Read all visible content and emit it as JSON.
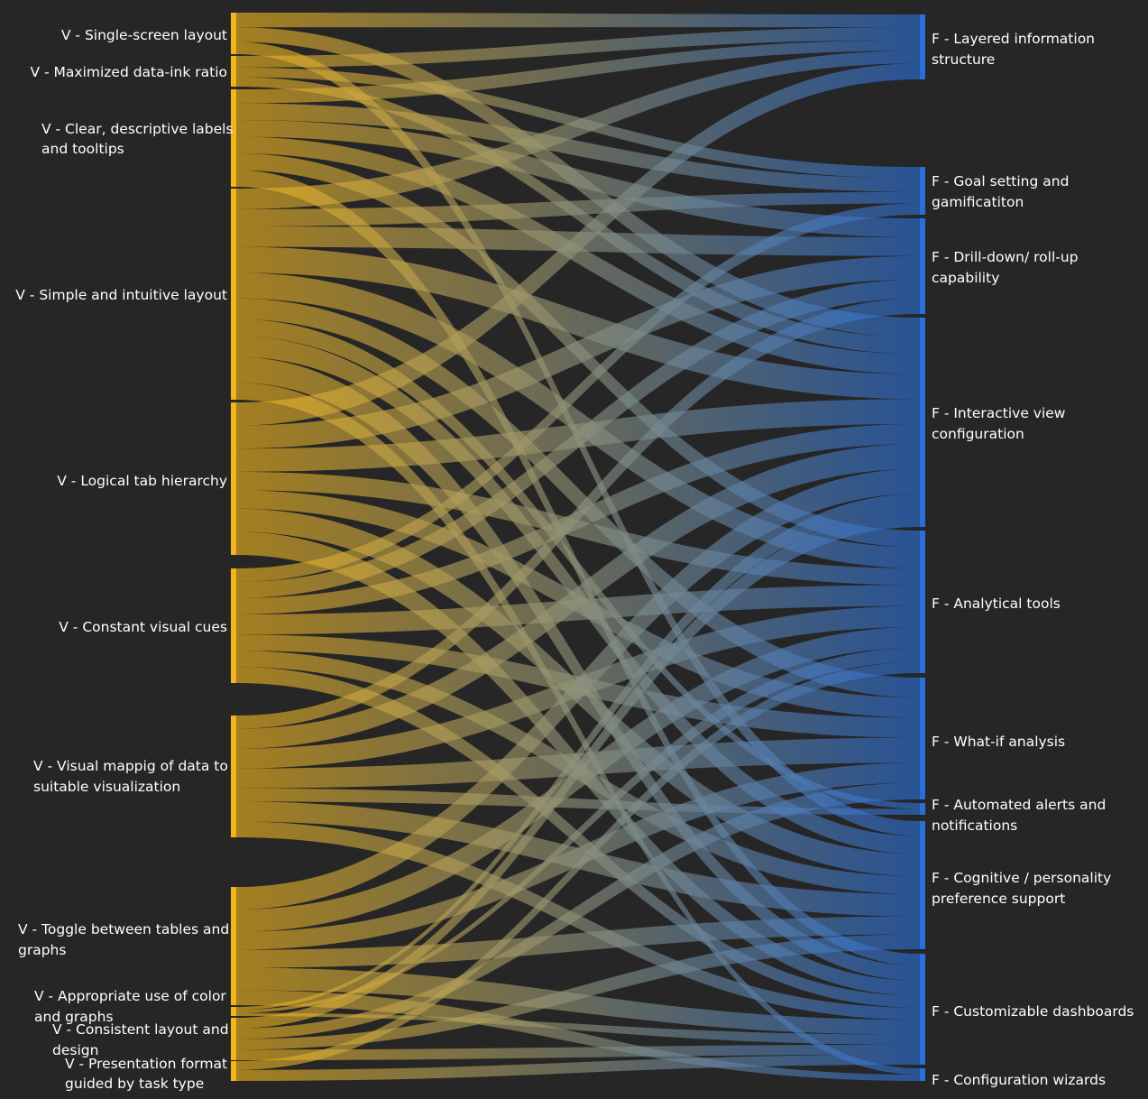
{
  "diagram": {
    "type": "sankey",
    "background_color": "#262626",
    "left_color": "#f2b51c",
    "right_color": "#2a6fd9",
    "sources": [
      {
        "id": "s1",
        "label_lines": [
          "V - Single-screen layout"
        ]
      },
      {
        "id": "s2",
        "label_lines": [
          "V - Maximized data-ink ratio"
        ]
      },
      {
        "id": "s3",
        "label_lines": [
          "V - Clear, descriptive labels",
          "and tooltips"
        ]
      },
      {
        "id": "s4",
        "label_lines": [
          "V - Simple and intuitive layout"
        ]
      },
      {
        "id": "s5",
        "label_lines": [
          "V - Logical tab hierarchy"
        ]
      },
      {
        "id": "s6",
        "label_lines": [
          "V - Constant visual cues"
        ]
      },
      {
        "id": "s7",
        "label_lines": [
          "V - Visual mappig of data to",
          "suitable visualization"
        ]
      },
      {
        "id": "s8",
        "label_lines": [
          "V - Toggle between tables and",
          "graphs"
        ]
      },
      {
        "id": "s9",
        "label_lines": [
          "V - Appropriate use of color",
          "and graphs"
        ]
      },
      {
        "id": "s10",
        "label_lines": [
          "V - Consistent layout and",
          "design"
        ]
      },
      {
        "id": "s11",
        "label_lines": [
          "V - Presentation format",
          "guided by task type"
        ]
      }
    ],
    "targets": [
      {
        "id": "t1",
        "label_lines": [
          "F - Layered information",
          "structure"
        ]
      },
      {
        "id": "t2",
        "label_lines": [
          "F - Goal setting and",
          "gamificatiton"
        ]
      },
      {
        "id": "t3",
        "label_lines": [
          "F - Drill-down/ roll-up",
          "capability"
        ]
      },
      {
        "id": "t4",
        "label_lines": [
          "F - Interactive view",
          "configuration"
        ]
      },
      {
        "id": "t5",
        "label_lines": [
          "F - Analytical tools"
        ]
      },
      {
        "id": "t6",
        "label_lines": [
          "F - What-if analysis"
        ]
      },
      {
        "id": "t7",
        "label_lines": [
          "F - Automated alerts and",
          "notifications"
        ]
      },
      {
        "id": "t8",
        "label_lines": [
          "F - Cognitive / personality",
          "preference support"
        ]
      },
      {
        "id": "t9",
        "label_lines": [
          "F - Customizable dashboards"
        ]
      },
      {
        "id": "t10",
        "label_lines": [
          "F - Configuration wizards"
        ]
      }
    ],
    "links": [
      {
        "from": "s1",
        "to": "t1",
        "value": 1.2
      },
      {
        "from": "s1",
        "to": "t4",
        "value": 1.2
      },
      {
        "from": "s1",
        "to": "t8",
        "value": 1
      },
      {
        "from": "s2",
        "to": "t1",
        "value": 1.2
      },
      {
        "from": "s2",
        "to": "t2",
        "value": 1
      },
      {
        "from": "s2",
        "to": "t4",
        "value": 1
      },
      {
        "from": "s3",
        "to": "t1",
        "value": 1
      },
      {
        "from": "s3",
        "to": "t2",
        "value": 1.2
      },
      {
        "from": "s3",
        "to": "t3",
        "value": 1.2
      },
      {
        "from": "s3",
        "to": "t4",
        "value": 1.2
      },
      {
        "from": "s3",
        "to": "t5",
        "value": 1.2
      },
      {
        "from": "s3",
        "to": "t9",
        "value": 1.2
      },
      {
        "from": "s4",
        "to": "t1",
        "value": 1.2
      },
      {
        "from": "s4",
        "to": "t2",
        "value": 1
      },
      {
        "from": "s4",
        "to": "t3",
        "value": 1.2
      },
      {
        "from": "s4",
        "to": "t4",
        "value": 1.5
      },
      {
        "from": "s4",
        "to": "t5",
        "value": 1.5
      },
      {
        "from": "s4",
        "to": "t6",
        "value": 1.2
      },
      {
        "from": "s4",
        "to": "t7",
        "value": 1
      },
      {
        "from": "s4",
        "to": "t8",
        "value": 1.2
      },
      {
        "from": "s4",
        "to": "t9",
        "value": 1.5
      },
      {
        "from": "s4",
        "to": "t10",
        "value": 1
      },
      {
        "from": "s5",
        "to": "t1",
        "value": 1.5
      },
      {
        "from": "s5",
        "to": "t3",
        "value": 1.5
      },
      {
        "from": "s5",
        "to": "t4",
        "value": 1.5
      },
      {
        "from": "s5",
        "to": "t5",
        "value": 1.2
      },
      {
        "from": "s5",
        "to": "t6",
        "value": 1.2
      },
      {
        "from": "s5",
        "to": "t8",
        "value": 1.5
      },
      {
        "from": "s5",
        "to": "t9",
        "value": 1.5
      },
      {
        "from": "s6",
        "to": "t2",
        "value": 1
      },
      {
        "from": "s6",
        "to": "t3",
        "value": 1.2
      },
      {
        "from": "s6",
        "to": "t4",
        "value": 1.2
      },
      {
        "from": "s6",
        "to": "t5",
        "value": 1.5
      },
      {
        "from": "s6",
        "to": "t6",
        "value": 1.2
      },
      {
        "from": "s6",
        "to": "t8",
        "value": 1.2
      },
      {
        "from": "s6",
        "to": "t9",
        "value": 1.2
      },
      {
        "from": "s7",
        "to": "t3",
        "value": 1
      },
      {
        "from": "s7",
        "to": "t4",
        "value": 1.5
      },
      {
        "from": "s7",
        "to": "t5",
        "value": 1.5
      },
      {
        "from": "s7",
        "to": "t6",
        "value": 1.5
      },
      {
        "from": "s7",
        "to": "t7",
        "value": 1
      },
      {
        "from": "s7",
        "to": "t8",
        "value": 1.5
      },
      {
        "from": "s7",
        "to": "t9",
        "value": 1.2
      },
      {
        "from": "s8",
        "to": "t4",
        "value": 1.5
      },
      {
        "from": "s8",
        "to": "t5",
        "value": 1.5
      },
      {
        "from": "s8",
        "to": "t6",
        "value": 1.2
      },
      {
        "from": "s8",
        "to": "t8",
        "value": 1.2
      },
      {
        "from": "s8",
        "to": "t9",
        "value": 1.5
      },
      {
        "from": "s8",
        "to": "t10",
        "value": 1
      },
      {
        "from": "s9",
        "to": "t4",
        "value": 1
      },
      {
        "from": "s9",
        "to": "t5",
        "value": 1
      },
      {
        "from": "s9",
        "to": "t9",
        "value": 1
      },
      {
        "from": "s10",
        "to": "t4",
        "value": 1
      },
      {
        "from": "s10",
        "to": "t6",
        "value": 1
      },
      {
        "from": "s10",
        "to": "t8",
        "value": 1
      },
      {
        "from": "s10",
        "to": "t9",
        "value": 1
      },
      {
        "from": "s11",
        "to": "t5",
        "value": 0.8
      },
      {
        "from": "s11",
        "to": "t9",
        "value": 1
      }
    ]
  }
}
